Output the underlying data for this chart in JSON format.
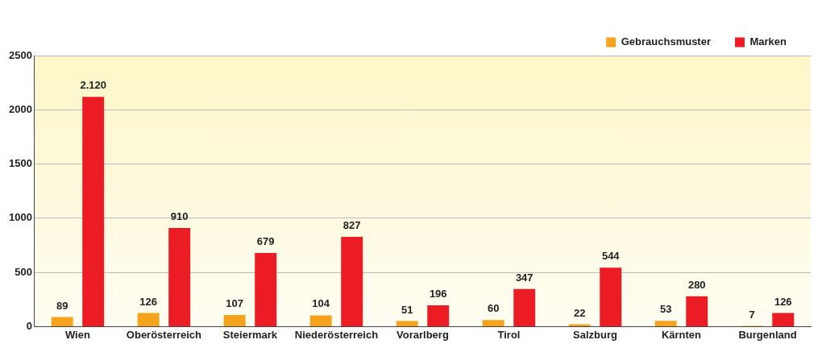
{
  "chart_data": {
    "type": "bar",
    "categories": [
      "Wien",
      "Oberösterreich",
      "Steiermark",
      "Niederösterreich",
      "Vorarlberg",
      "Tirol",
      "Salzburg",
      "Kärnten",
      "Burgenland"
    ],
    "series": [
      {
        "name": "Gebrauchsmuster",
        "color": "#f5a31c",
        "values": [
          89,
          126,
          107,
          104,
          51,
          60,
          22,
          53,
          7
        ],
        "value_labels": [
          "89",
          "126",
          "107",
          "104",
          "51",
          "60",
          "22",
          "53",
          "7"
        ]
      },
      {
        "name": "Marken",
        "color": "#ec1c24",
        "values": [
          2120,
          910,
          679,
          827,
          196,
          347,
          544,
          280,
          126
        ],
        "value_labels": [
          "2.120",
          "910",
          "679",
          "827",
          "196",
          "347",
          "544",
          "280",
          "126"
        ]
      }
    ],
    "ylim": [
      0,
      2500
    ],
    "yticks": [
      0,
      500,
      1000,
      1500,
      2000,
      2500
    ],
    "grid": "y",
    "legend": "top right"
  }
}
